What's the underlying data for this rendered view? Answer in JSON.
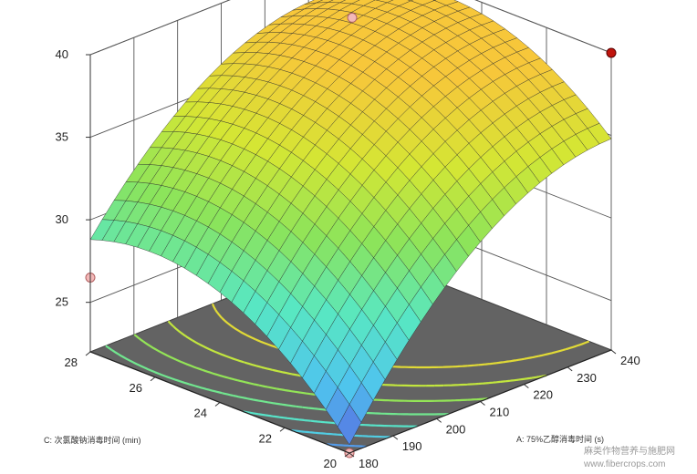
{
  "chart_data": {
    "type": "surface3d",
    "title": "",
    "z_axis": {
      "label": "",
      "range": [
        22,
        40
      ],
      "ticks": [
        "25",
        "30",
        "35",
        "40"
      ]
    },
    "x_axis": {
      "label": "A: 75%乙醇消毒时间 (s)",
      "range": [
        180,
        240
      ],
      "ticks": [
        "180",
        "190",
        "200",
        "210",
        "220",
        "230",
        "240"
      ]
    },
    "y_axis": {
      "label": "C: 次氯酸钠消毒时间 (min)",
      "range": [
        20,
        28
      ],
      "ticks": [
        "20",
        "22",
        "24",
        "26",
        "28"
      ]
    },
    "surface_corners": [
      {
        "A": 180,
        "C": 20,
        "value": 22.5
      },
      {
        "A": 180,
        "C": 28,
        "value": 28.8
      },
      {
        "A": 240,
        "C": 28,
        "value": 37.8
      },
      {
        "A": 240,
        "C": 20,
        "value": 34.8
      },
      {
        "A": 210,
        "C": 24,
        "value": 37.0
      }
    ],
    "design_points": [
      {
        "A": 180,
        "C": 28,
        "value": 26.5
      },
      {
        "A": 180,
        "C": 20,
        "value": 22.0
      },
      {
        "A": 240,
        "C": 20,
        "value": 40.0
      },
      {
        "A": 240,
        "C": 28,
        "value": 36.0
      }
    ],
    "contour_floor": true,
    "grid": true,
    "colormap": [
      "#5a56e0",
      "#4fc4ee",
      "#58e7c2",
      "#8ae45c",
      "#d4e634",
      "#f7c73a"
    ]
  },
  "watermark": {
    "line1": "麻类作物营养与施肥网",
    "line2": "www.fibercrops.com"
  }
}
